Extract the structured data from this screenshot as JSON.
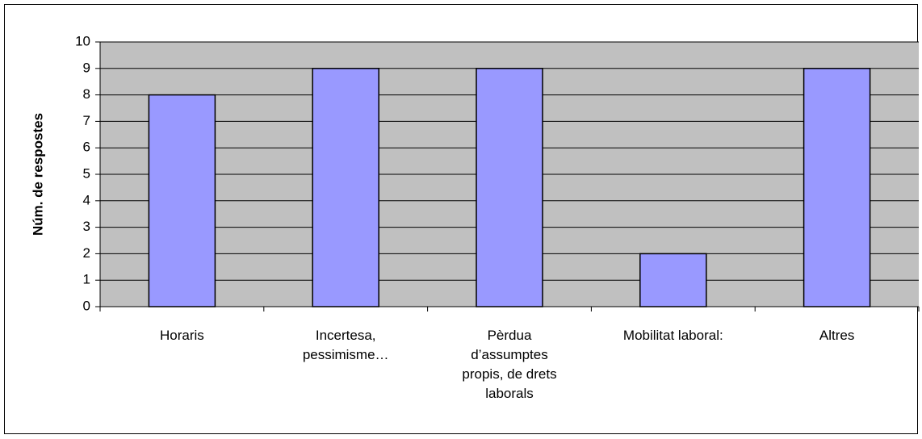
{
  "chart_data": {
    "type": "bar",
    "y_label": "Núm. de respostes",
    "categories": [
      "Horaris",
      "Incertesa,\npessimisme…",
      "Pèrdua\nd’assumptes\npropis, de drets\nlaborals",
      "Mobilitat laboral:",
      "Altres"
    ],
    "values": [
      8,
      9,
      9,
      2,
      9
    ],
    "color": "#9999ff",
    "plot_background": "#c0c0c0",
    "ylim": [
      0,
      10
    ],
    "yticks": [
      0,
      1,
      2,
      3,
      4,
      5,
      6,
      7,
      8,
      9,
      10
    ],
    "grid": true
  }
}
